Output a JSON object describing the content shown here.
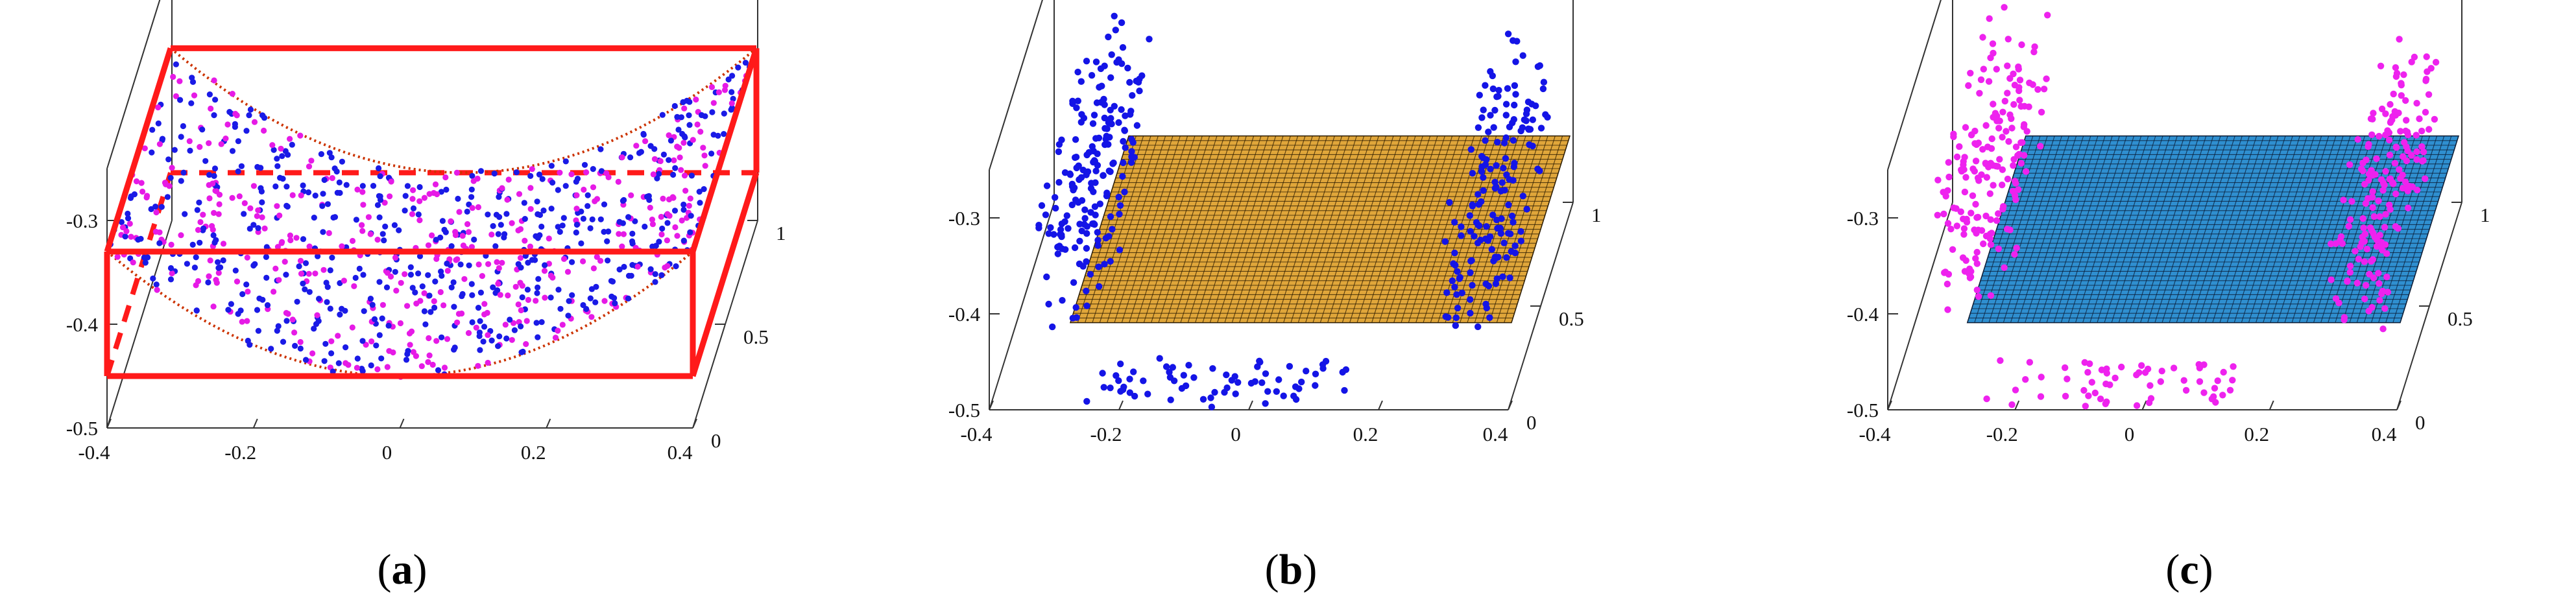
{
  "chart_data": [
    {
      "panel_label": "a",
      "type": "scatter",
      "x_ticks": [
        "-0.4",
        "-0.2",
        "0",
        "0.2",
        "0.4"
      ],
      "y_ticks": [
        "0",
        "0.5",
        "1"
      ],
      "z_ticks": [
        "-0.5",
        "-0.4",
        "-0.3"
      ],
      "xlim": [
        -0.4,
        0.4
      ],
      "ylim": [
        0,
        1
      ],
      "zlim": [
        -0.5,
        -0.25
      ],
      "grid": false,
      "surface": "curved sheet of points bounded by a box",
      "colors": {
        "series_1": "#1a1ae6",
        "series_2": "#e61ae6",
        "box": "#ff1a1a",
        "curve": "#cc3300"
      }
    },
    {
      "panel_label": "b",
      "type": "scatter",
      "x_ticks": [
        "-0.4",
        "-0.2",
        "0",
        "0.2",
        "0.4"
      ],
      "y_ticks": [
        "0",
        "0.5",
        "1"
      ],
      "z_ticks": [
        "-0.5",
        "-0.4",
        "-0.3"
      ],
      "xlim": [
        -0.4,
        0.4
      ],
      "ylim": [
        0,
        1
      ],
      "zlim": [
        -0.5,
        -0.25
      ],
      "grid": false,
      "plane_z": -0.42,
      "colors": {
        "points": "#1414e6",
        "plane": "#e0a63a",
        "mesh": "#2a1a00"
      }
    },
    {
      "panel_label": "c",
      "type": "scatter",
      "x_ticks": [
        "-0.4",
        "-0.2",
        "0",
        "0.2",
        "0.4"
      ],
      "y_ticks": [
        "0",
        "0.5",
        "1"
      ],
      "z_ticks": [
        "-0.5",
        "-0.4",
        "-0.3"
      ],
      "xlim": [
        -0.4,
        0.4
      ],
      "ylim": [
        0,
        1
      ],
      "zlim": [
        -0.5,
        -0.25
      ],
      "grid": false,
      "plane_z": -0.42,
      "colors": {
        "points": "#ee22ee",
        "plane": "#2f8fd0",
        "mesh": "#0a1a33"
      }
    }
  ],
  "captions": [
    {
      "open": "(",
      "letter": "a",
      "close": ")"
    },
    {
      "open": "(",
      "letter": "b",
      "close": ")"
    },
    {
      "open": "(",
      "letter": "c",
      "close": ")"
    }
  ]
}
